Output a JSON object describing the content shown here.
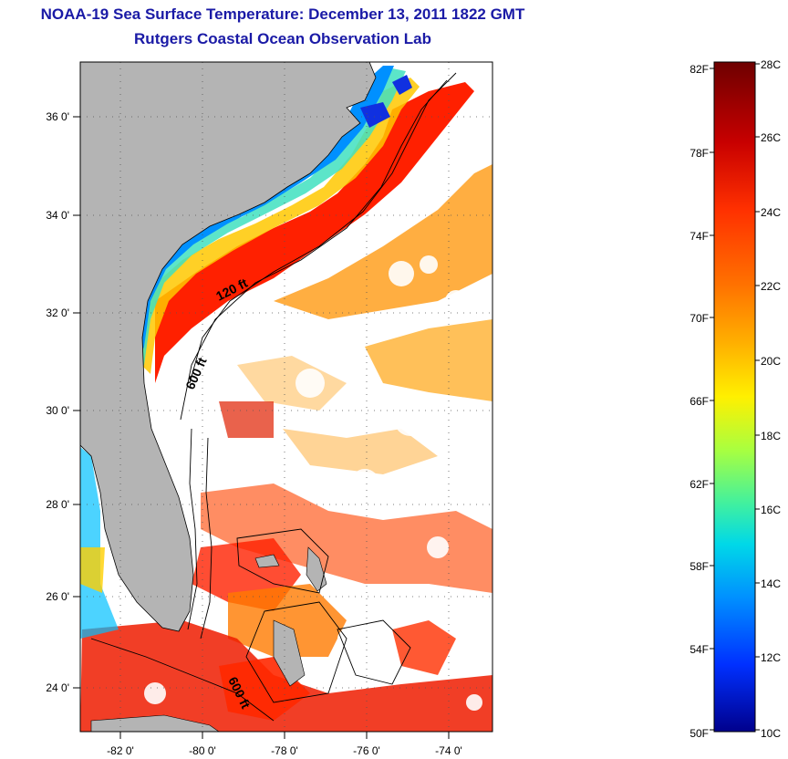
{
  "title": {
    "line1": "NOAA-19 Sea Surface Temperature:  December 13, 2011 1822 GMT",
    "line2": "Rutgers Coastal Ocean Observation Lab"
  },
  "map": {
    "lon_ticks": [
      "-82 0'",
      "-80 0'",
      "-78 0'",
      "-76 0'",
      "-74 0'"
    ],
    "lat_ticks": [
      "36 0'",
      "34 0'",
      "32 0'",
      "30 0'",
      "28 0'",
      "26 0'",
      "24 0'"
    ],
    "contour_labels": [
      "120 ft",
      "600 ft",
      "600 ft"
    ],
    "colors": {
      "land": "#b4b4b4",
      "cloud": "#ffffff",
      "frame": "#000000"
    }
  },
  "colorbar": {
    "fahrenheit_labels": [
      "82F",
      "78F",
      "74F",
      "70F",
      "66F",
      "62F",
      "58F",
      "54F",
      "50F"
    ],
    "celsius_labels": [
      "28C",
      "26C",
      "24C",
      "22C",
      "20C",
      "18C",
      "16C",
      "14C",
      "12C",
      "10C"
    ],
    "colors": [
      "#7a0000",
      "#c80000",
      "#ff2a00",
      "#ff6400",
      "#ffa000",
      "#ffd000",
      "#e0ff20",
      "#80ff60",
      "#20e8c0",
      "#00b4ff",
      "#0050ff",
      "#0000b4"
    ]
  }
}
